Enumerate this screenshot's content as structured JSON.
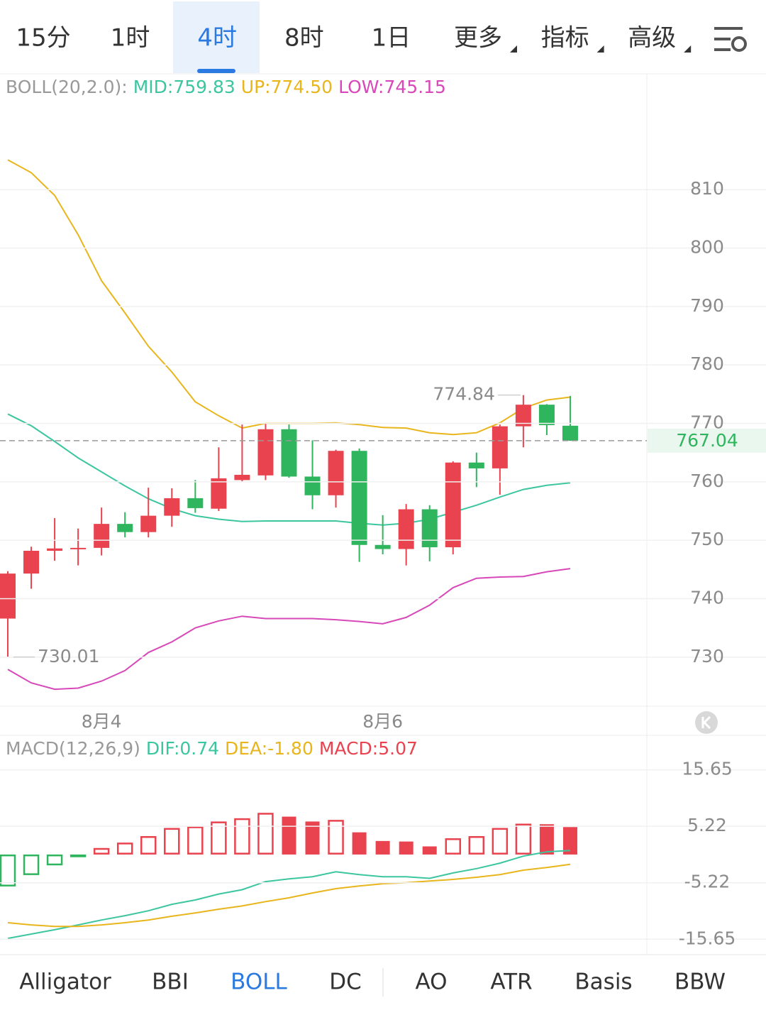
{
  "top_tabs": {
    "items": [
      "15分",
      "1时",
      "4时",
      "8时",
      "1日",
      "更多",
      "指标",
      "高级"
    ],
    "active": 2
  },
  "chart_data": [
    {
      "type": "candlestick",
      "legend": [
        "BOLL(20,2.0):",
        "MID:759.83",
        "UP:774.50",
        "LOW:745.15"
      ],
      "categories": [
        null,
        null,
        null,
        null,
        "8月4",
        null,
        null,
        null,
        null,
        null,
        null,
        null,
        null,
        null,
        null,
        null,
        "8月6",
        null,
        null,
        null,
        null,
        null,
        null,
        null,
        null
      ],
      "open": [
        736.6,
        744.3,
        748.2,
        748.6,
        748.7,
        752.8,
        751.4,
        754.2,
        757.2,
        755.4,
        760.3,
        761.1,
        769.0,
        760.9,
        757.7,
        765.3,
        749.2,
        748.5,
        755.3,
        748.8,
        763.3,
        762.3,
        769.5,
        773.2,
        769.6
      ],
      "high": [
        744.7,
        748.9,
        753.8,
        752.0,
        755.6,
        754.8,
        759.0,
        758.9,
        760.3,
        765.9,
        769.8,
        770.0,
        769.8,
        767.1,
        765.5,
        765.7,
        754.3,
        756.2,
        756.0,
        763.5,
        765.0,
        769.8,
        774.84,
        773.3,
        774.7
      ],
      "low": [
        730.01,
        741.7,
        746.5,
        745.7,
        747.4,
        750.5,
        750.5,
        752.3,
        754.7,
        755.0,
        760.1,
        760.3,
        760.7,
        755.3,
        755.6,
        746.3,
        747.6,
        745.7,
        746.4,
        747.6,
        759.1,
        757.8,
        765.9,
        768.0,
        767.0
      ],
      "close": [
        744.3,
        748.2,
        748.6,
        748.7,
        752.8,
        751.4,
        754.2,
        757.2,
        755.5,
        760.6,
        761.2,
        769.0,
        760.9,
        757.7,
        765.3,
        749.2,
        748.5,
        755.3,
        748.8,
        763.3,
        762.3,
        769.5,
        773.2,
        769.7,
        767.04
      ],
      "up_color": "#e8434f",
      "down_color": "#2fb55d",
      "series": [
        {
          "color": "#3cc6a0",
          "values": [
            771.6,
            769.6,
            766.9,
            764.1,
            761.7,
            759.3,
            757.1,
            755.4,
            754.2,
            753.6,
            753.2,
            753.3,
            753.3,
            753.3,
            753.3,
            752.9,
            752.6,
            752.9,
            753.6,
            754.8,
            756.0,
            757.4,
            758.7,
            759.4,
            759.83
          ]
        },
        {
          "color": "#e8b51c",
          "values": [
            815.1,
            812.9,
            809.0,
            802.3,
            794.4,
            788.9,
            783.2,
            778.8,
            773.7,
            771.3,
            769.2,
            770.0,
            770.0,
            770.0,
            770.1,
            769.8,
            769.3,
            769.2,
            768.4,
            768.1,
            768.4,
            770.1,
            772.6,
            774.0,
            774.5
          ]
        },
        {
          "color": "#d748b8",
          "values": [
            727.9,
            725.6,
            724.5,
            724.7,
            725.9,
            727.7,
            730.8,
            732.6,
            735.0,
            736.2,
            737.0,
            736.6,
            736.6,
            736.6,
            736.4,
            736.1,
            735.7,
            736.8,
            738.9,
            741.9,
            743.5,
            743.7,
            743.8,
            744.6,
            745.15
          ]
        }
      ],
      "ylim": [
        721.6,
        829.7
      ],
      "yticks": [
        730,
        740,
        750,
        760,
        770,
        780,
        790,
        800,
        810
      ],
      "grid": true
    },
    {
      "type": "macd",
      "legend": [
        "MACD(12,26,9)",
        "DIF:0.74",
        "DEA:-1.80",
        "MACD:5.07"
      ],
      "values": [
        -5.9,
        -3.8,
        -2.0,
        -0.5,
        1.2,
        2.2,
        3.4,
        4.9,
        5.2,
        6.1,
        6.7,
        7.7,
        7.0,
        6.1,
        6.4,
        4.1,
        2.5,
        2.4,
        1.5,
        3.0,
        3.4,
        4.9,
        5.7,
        5.6,
        5.07
      ],
      "up_color": "#e8434f",
      "down_color": "#2fb55d",
      "series": [
        {
          "color": "#3cc6a0",
          "values": [
            -15.5,
            -14.7,
            -13.9,
            -13.0,
            -12.1,
            -11.3,
            -10.4,
            -9.2,
            -8.4,
            -7.3,
            -6.5,
            -5.0,
            -4.5,
            -4.1,
            -3.2,
            -3.7,
            -4.1,
            -4.1,
            -4.4,
            -3.4,
            -2.6,
            -1.6,
            -0.3,
            0.5,
            0.74
          ]
        },
        {
          "color": "#e8b51c",
          "values": [
            -12.6,
            -13.0,
            -13.3,
            -13.3,
            -13.0,
            -12.6,
            -12.1,
            -11.4,
            -10.8,
            -10.1,
            -9.5,
            -8.7,
            -8.0,
            -7.1,
            -6.3,
            -5.8,
            -5.4,
            -5.2,
            -4.9,
            -4.6,
            -4.2,
            -3.7,
            -2.9,
            -2.4,
            -1.8
          ]
        }
      ],
      "ylim": [
        -18.5,
        21.5
      ],
      "yticks": [
        15.65,
        5.22,
        -5.22,
        -15.65
      ],
      "grid": true
    }
  ],
  "bottom_tabs": {
    "items": [
      "Alligator",
      "BBI",
      "BOLL",
      "DC",
      "AO",
      "ATR",
      "Basis",
      "BBW"
    ],
    "active": 2
  }
}
